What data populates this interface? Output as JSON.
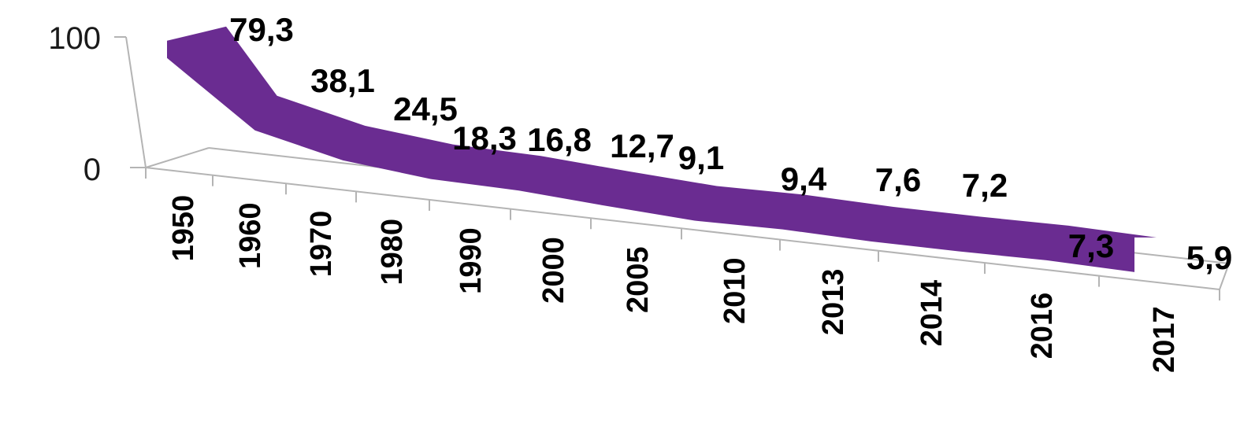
{
  "chart_data": {
    "type": "area",
    "categories": [
      "1950",
      "1960",
      "1970",
      "1980",
      "1990",
      "2000",
      "2005",
      "2010",
      "2013",
      "2014",
      "2016",
      "2017"
    ],
    "series": [
      {
        "values": [
          79.3,
          38.1,
          24.5,
          18.3,
          16.8,
          12.7,
          9.1,
          9.4,
          7.6,
          7.2,
          7.3,
          5.9
        ],
        "labels": [
          "79,3",
          "38,1",
          "24,5",
          "18,3",
          "16,8",
          "12,7",
          "9,1",
          "9,4",
          "7,6",
          "7,2",
          "7,3",
          "5,9"
        ],
        "color": "#6a2c91"
      }
    ],
    "yticks": [
      "0",
      "100"
    ],
    "ylim": [
      0,
      100
    ],
    "style": "3d-ribbon",
    "grid": false,
    "legend": "none"
  }
}
